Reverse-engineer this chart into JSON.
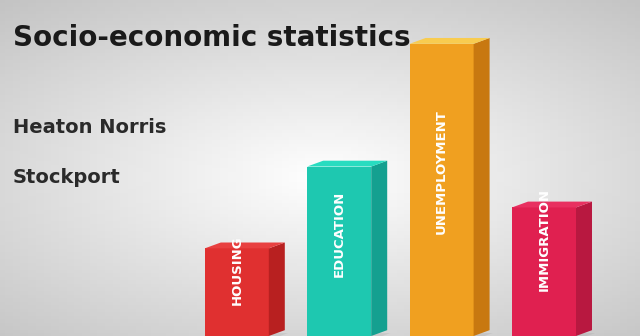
{
  "title": "Socio-economic statistics",
  "subtitle1": "Heaton Norris",
  "subtitle2": "Stockport",
  "categories": [
    "HOUSING",
    "EDUCATION",
    "UNEMPLOYMENT",
    "IMMIGRATION"
  ],
  "values": [
    0.3,
    0.58,
    1.0,
    0.44
  ],
  "front_colors": [
    "#e03030",
    "#1ec8b0",
    "#f0a020",
    "#e02050"
  ],
  "side_colors": [
    "#b82020",
    "#14a090",
    "#c87810",
    "#b81840"
  ],
  "top_colors": [
    "#e84040",
    "#28dcc0",
    "#f8cc50",
    "#e83060"
  ],
  "background_color": "#cccccc",
  "title_fontsize": 20,
  "subtitle_fontsize": 14,
  "label_fontsize": 9.5,
  "ylim": [
    0,
    1.15
  ]
}
